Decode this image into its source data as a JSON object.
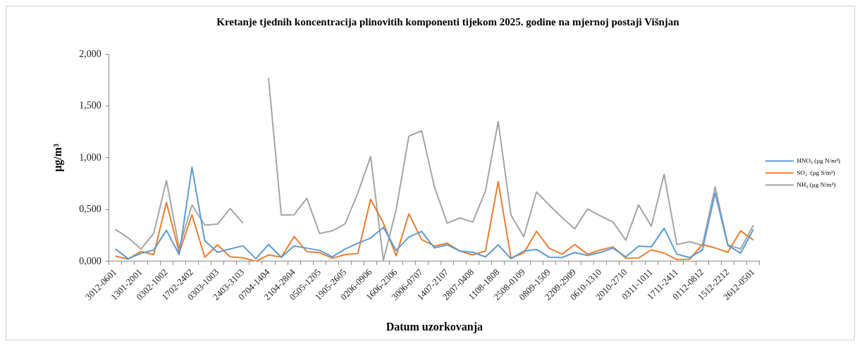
{
  "chart_data": {
    "type": "line",
    "title": "Kretanje tjednih koncentracija plinovitih komponenti tijekom 2025. godine na mjernoj postaji Višnjan",
    "xlabel": "Datum uzorkovanja",
    "ylabel": "µg/m³",
    "categories": [
      "3012-0601",
      null,
      "1301-2001",
      null,
      "0302-1002",
      null,
      "1702-2402",
      null,
      "0303-1003",
      null,
      "2403-3103",
      null,
      "0704-1404",
      null,
      "2104-2804",
      null,
      "0505-1205",
      null,
      "1905-2605",
      null,
      "0206-0906",
      null,
      "1606-2306",
      null,
      "3006-0707",
      null,
      "1407-2107",
      null,
      "2807-0408",
      null,
      "1108-1808",
      null,
      "2508-0109",
      null,
      "0809-1509",
      null,
      "2209-2909",
      null,
      "0610-1310",
      null,
      "2010-2710",
      null,
      "0311-1011",
      null,
      "1711-2411",
      null,
      "0112-0812",
      null,
      "1512-2212",
      null,
      "2612-0501"
    ],
    "series": [
      {
        "name": "HNO₃ (µg N/m³)",
        "color": "#5b9bd5",
        "values": [
          0.12,
          0.026,
          0.077,
          0.11,
          0.3,
          0.066,
          0.91,
          0.2,
          0.088,
          0.12,
          0.15,
          0.026,
          0.163,
          0.04,
          0.15,
          0.128,
          0.106,
          0.044,
          0.12,
          0.176,
          0.225,
          0.33,
          0.106,
          0.235,
          0.29,
          0.13,
          0.16,
          0.1,
          0.088,
          0.044,
          0.16,
          0.026,
          0.1,
          0.115,
          0.04,
          0.037,
          0.086,
          0.057,
          0.086,
          0.128,
          0.044,
          0.148,
          0.14,
          0.32,
          0.07,
          0.037,
          0.11,
          0.66,
          0.154,
          0.08,
          0.31
        ]
      },
      {
        "name": "SO₂  (µg S/m³)",
        "color": "#ed7d31",
        "values": [
          0.05,
          0.022,
          0.097,
          0.066,
          0.57,
          0.084,
          0.45,
          0.04,
          0.16,
          0.044,
          0.035,
          0.0,
          0.062,
          0.04,
          0.24,
          0.095,
          0.084,
          0.031,
          0.066,
          0.077,
          0.6,
          0.37,
          0.055,
          0.46,
          0.21,
          0.148,
          0.176,
          0.1,
          0.062,
          0.1,
          0.77,
          0.033,
          0.08,
          0.29,
          0.126,
          0.07,
          0.163,
          0.07,
          0.11,
          0.14,
          0.031,
          0.033,
          0.112,
          0.08,
          0.018,
          0.02,
          0.163,
          0.13,
          0.088,
          0.295,
          0.205
        ]
      },
      {
        "name": "NH₃ (µg N/m³)",
        "color": "#a5a5a5",
        "values": [
          0.31,
          0.227,
          0.12,
          0.27,
          0.78,
          0.13,
          0.546,
          0.35,
          0.36,
          0.51,
          0.37,
          null,
          1.77,
          0.447,
          0.45,
          0.61,
          0.27,
          0.295,
          0.363,
          0.66,
          1.013,
          0.01,
          0.5,
          1.21,
          1.26,
          0.72,
          0.37,
          0.42,
          0.38,
          0.68,
          1.35,
          0.447,
          0.238,
          0.67,
          0.544,
          0.423,
          0.315,
          0.507,
          0.44,
          0.38,
          0.205,
          0.546,
          0.34,
          0.84,
          0.163,
          0.19,
          0.154,
          0.72,
          0.16,
          0.12,
          0.35
        ]
      }
    ],
    "ylim": [
      0,
      2
    ],
    "yticks": [
      {
        "value": 0,
        "label": "0,000"
      },
      {
        "value": 0.5,
        "label": "0,500"
      },
      {
        "value": 1,
        "label": "1,000"
      },
      {
        "value": 1.5,
        "label": "1,500"
      },
      {
        "value": 2,
        "label": "2,000"
      }
    ],
    "grid": false,
    "legend": "right",
    "marker": "none",
    "line_style": "solid"
  }
}
